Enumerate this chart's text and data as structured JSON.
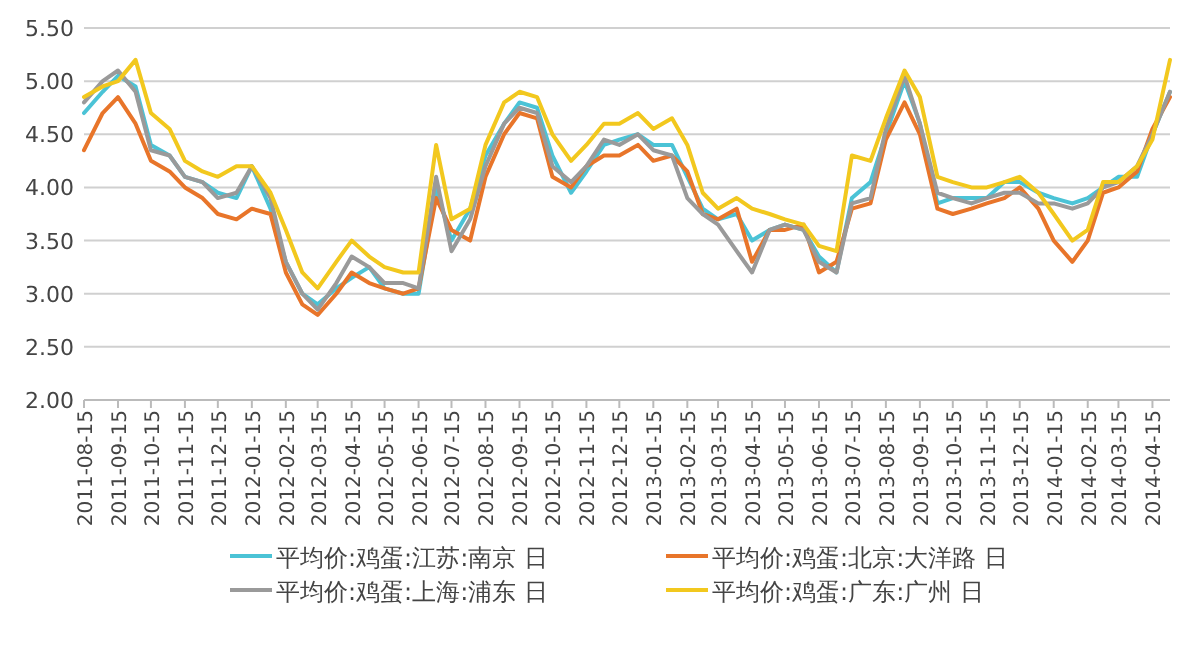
{
  "chart_data": {
    "type": "line",
    "x": [
      "2011-08-15",
      "2011-09-01",
      "2011-09-15",
      "2011-10-01",
      "2011-10-15",
      "2011-11-01",
      "2011-11-15",
      "2011-12-01",
      "2011-12-15",
      "2012-01-01",
      "2012-01-15",
      "2012-02-01",
      "2012-02-15",
      "2012-03-01",
      "2012-03-15",
      "2012-04-01",
      "2012-04-15",
      "2012-05-01",
      "2012-05-15",
      "2012-06-01",
      "2012-06-15",
      "2012-07-01",
      "2012-07-15",
      "2012-08-01",
      "2012-08-15",
      "2012-09-01",
      "2012-09-15",
      "2012-10-01",
      "2012-10-15",
      "2012-11-01",
      "2012-11-15",
      "2012-12-01",
      "2012-12-15",
      "2013-01-01",
      "2013-01-15",
      "2013-02-01",
      "2013-02-15",
      "2013-03-01",
      "2013-03-15",
      "2013-04-01",
      "2013-04-15",
      "2013-05-01",
      "2013-05-15",
      "2013-06-01",
      "2013-06-15",
      "2013-07-01",
      "2013-07-15",
      "2013-08-01",
      "2013-08-15",
      "2013-09-01",
      "2013-09-15",
      "2013-10-01",
      "2013-10-15",
      "2013-11-01",
      "2013-11-15",
      "2013-12-01",
      "2013-12-15",
      "2014-01-01",
      "2014-01-15",
      "2014-02-01",
      "2014-02-15",
      "2014-03-01",
      "2014-03-15",
      "2014-04-01",
      "2014-04-15",
      "2014-05-01"
    ],
    "series": [
      {
        "name": "平均价:鸡蛋:江苏:南京 日",
        "color": "#4bc3d6",
        "values": [
          4.7,
          4.9,
          5.05,
          4.95,
          4.4,
          4.3,
          4.1,
          4.05,
          3.95,
          3.9,
          4.2,
          3.8,
          3.3,
          3.0,
          2.9,
          3.05,
          3.15,
          3.25,
          3.05,
          3.0,
          3.0,
          4.0,
          3.5,
          3.8,
          4.3,
          4.6,
          4.8,
          4.75,
          4.3,
          3.95,
          4.15,
          4.4,
          4.45,
          4.5,
          4.4,
          4.4,
          4.1,
          3.8,
          3.7,
          3.75,
          3.5,
          3.6,
          3.65,
          3.6,
          3.35,
          3.2,
          3.9,
          4.05,
          4.5,
          5.0,
          4.6,
          3.85,
          3.9,
          3.9,
          3.9,
          4.05,
          4.05,
          3.95,
          3.9,
          3.85,
          3.9,
          4.0,
          4.1,
          4.1,
          4.5,
          4.9
        ]
      },
      {
        "name": "平均价:鸡蛋:北京:大洋路 日",
        "color": "#e8752a",
        "values": [
          4.35,
          4.7,
          4.85,
          4.6,
          4.25,
          4.15,
          4.0,
          3.9,
          3.75,
          3.7,
          3.8,
          3.75,
          3.2,
          2.9,
          2.8,
          3.0,
          3.2,
          3.1,
          3.05,
          3.0,
          3.05,
          3.9,
          3.6,
          3.5,
          4.1,
          4.5,
          4.7,
          4.65,
          4.1,
          4.0,
          4.2,
          4.3,
          4.3,
          4.4,
          4.25,
          4.3,
          4.15,
          3.75,
          3.7,
          3.8,
          3.3,
          3.6,
          3.6,
          3.65,
          3.2,
          3.3,
          3.8,
          3.85,
          4.45,
          4.8,
          4.5,
          3.8,
          3.75,
          3.8,
          3.85,
          3.9,
          4.0,
          3.8,
          3.5,
          3.3,
          3.5,
          3.95,
          4.0,
          4.15,
          4.55,
          4.85
        ]
      },
      {
        "name": "平均价:鸡蛋:上海:浦东 日",
        "color": "#9a9a9a",
        "values": [
          4.8,
          5.0,
          5.1,
          4.9,
          4.35,
          4.3,
          4.1,
          4.05,
          3.9,
          3.95,
          4.2,
          3.9,
          3.3,
          3.0,
          2.85,
          3.1,
          3.35,
          3.25,
          3.1,
          3.1,
          3.05,
          4.1,
          3.4,
          3.7,
          4.2,
          4.6,
          4.75,
          4.7,
          4.2,
          4.05,
          4.2,
          4.45,
          4.4,
          4.5,
          4.35,
          4.3,
          3.9,
          3.75,
          3.65,
          3.4,
          3.2,
          3.6,
          3.65,
          3.6,
          3.3,
          3.2,
          3.85,
          3.9,
          4.55,
          5.05,
          4.6,
          3.95,
          3.9,
          3.85,
          3.9,
          3.95,
          3.95,
          3.85,
          3.85,
          3.8,
          3.85,
          4.0,
          4.05,
          4.2,
          4.5,
          4.9
        ]
      },
      {
        "name": "平均价:鸡蛋:广东:广州 日",
        "color": "#f2c81e",
        "values": [
          4.85,
          4.95,
          5.0,
          5.2,
          4.7,
          4.55,
          4.25,
          4.15,
          4.1,
          4.2,
          4.2,
          3.95,
          3.6,
          3.2,
          3.05,
          3.3,
          3.5,
          3.35,
          3.25,
          3.2,
          3.2,
          4.4,
          3.7,
          3.8,
          4.4,
          4.8,
          4.9,
          4.85,
          4.5,
          4.25,
          4.4,
          4.6,
          4.6,
          4.7,
          4.55,
          4.65,
          4.4,
          3.95,
          3.8,
          3.9,
          3.8,
          3.75,
          3.7,
          3.65,
          3.45,
          3.4,
          4.3,
          4.25,
          4.65,
          5.1,
          4.85,
          4.1,
          4.05,
          4.0,
          4.0,
          4.05,
          4.1,
          3.95,
          3.75,
          3.5,
          3.6,
          4.05,
          4.05,
          4.2,
          4.45,
          5.2
        ]
      }
    ],
    "xlim": [
      "2011-08-15",
      "2014-05-01"
    ],
    "xticks": [
      "2011-08-15",
      "2011-09-15",
      "2011-10-15",
      "2011-11-15",
      "2011-12-15",
      "2012-01-15",
      "2012-02-15",
      "2012-03-15",
      "2012-04-15",
      "2012-05-15",
      "2012-06-15",
      "2012-07-15",
      "2012-08-15",
      "2012-09-15",
      "2012-10-15",
      "2012-11-15",
      "2012-12-15",
      "2013-01-15",
      "2013-02-15",
      "2013-03-15",
      "2013-04-15",
      "2013-05-15",
      "2013-06-15",
      "2013-07-15",
      "2013-08-15",
      "2013-09-15",
      "2013-10-15",
      "2013-11-15",
      "2013-12-15",
      "2014-01-15",
      "2014-02-15",
      "2014-03-15",
      "2014-04-15"
    ],
    "ylim": [
      2.0,
      5.5
    ],
    "yticks": [
      {
        "value": 2.0,
        "label": "2.00"
      },
      {
        "value": 2.5,
        "label": "2.50"
      },
      {
        "value": 3.0,
        "label": "3.00"
      },
      {
        "value": 3.5,
        "label": "3.50"
      },
      {
        "value": 4.0,
        "label": "4.00"
      },
      {
        "value": 4.5,
        "label": "4.50"
      },
      {
        "value": 5.0,
        "label": "5.00"
      },
      {
        "value": 5.5,
        "label": "5.50"
      }
    ],
    "grid": "y",
    "legend": "bottom"
  }
}
